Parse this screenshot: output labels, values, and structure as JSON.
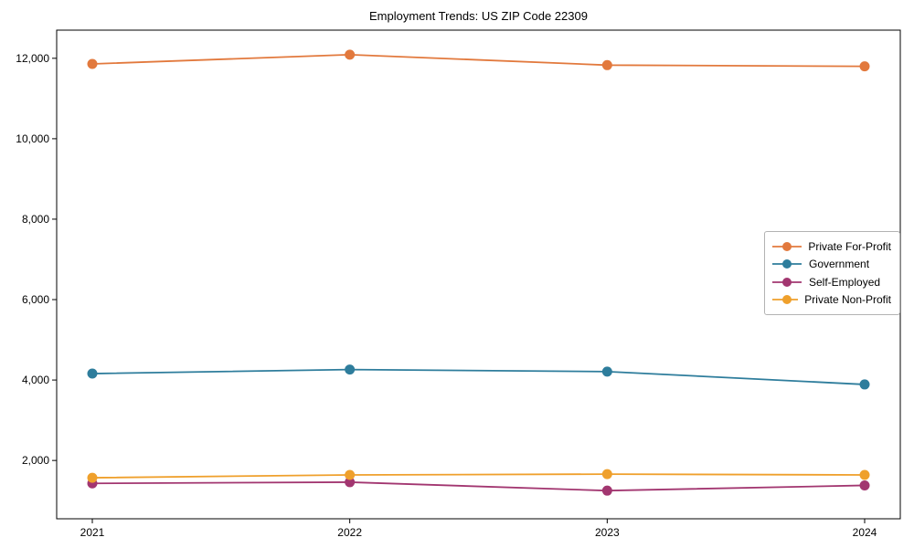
{
  "chart_data": {
    "type": "line",
    "title": "Employment Trends: US ZIP Code 22309",
    "xlabel": "",
    "ylabel": "",
    "categories": [
      "2021",
      "2022",
      "2023",
      "2024"
    ],
    "x": [
      2021,
      2022,
      2023,
      2024
    ],
    "series": [
      {
        "name": "Private For-Profit",
        "color": "#e2793d",
        "values": [
          11860,
          12090,
          11830,
          11800
        ]
      },
      {
        "name": "Government",
        "color": "#2e7d9c",
        "values": [
          4160,
          4260,
          4210,
          3890
        ]
      },
      {
        "name": "Self-Employed",
        "color": "#a23670",
        "values": [
          1430,
          1460,
          1250,
          1380
        ]
      },
      {
        "name": "Private Non-Profit",
        "color": "#efa02c",
        "values": [
          1570,
          1640,
          1660,
          1640
        ]
      }
    ],
    "yticks": [
      2000,
      4000,
      6000,
      8000,
      10000,
      12000
    ],
    "ytick_labels": [
      "2,000",
      "4,000",
      "6,000",
      "8,000",
      "10,000",
      "12,000"
    ],
    "ylim": [
      550,
      12700
    ],
    "grid": false,
    "legend_position": "center-right",
    "frame_color": "#000000",
    "background_color": "#ffffff"
  }
}
